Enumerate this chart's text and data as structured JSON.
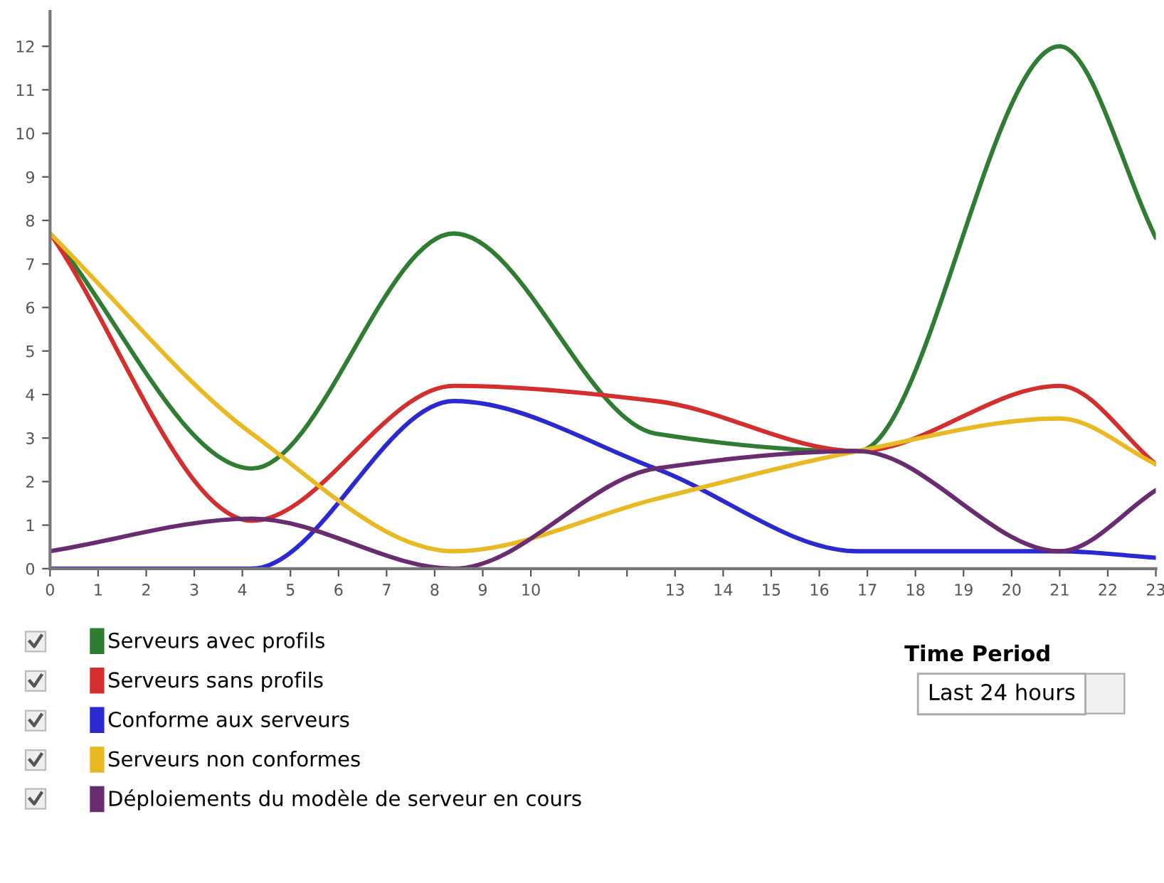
{
  "chart_data": {
    "type": "line",
    "x": [
      0,
      4.2,
      8.4,
      12.6,
      16.8,
      21,
      23
    ],
    "series": [
      {
        "name": "Serveurs avec profils",
        "color": "#2e7d32",
        "values": [
          7.7,
          2.3,
          7.7,
          3.1,
          2.7,
          12,
          7.6
        ]
      },
      {
        "name": "Serveurs sans profils",
        "color": "#d32f2f",
        "values": [
          7.7,
          1.1,
          4.2,
          3.85,
          2.7,
          4.2,
          2.4
        ]
      },
      {
        "name": "Conforme aux serveurs",
        "color": "#2a2ad0",
        "values": [
          0,
          0,
          3.85,
          2.3,
          0.4,
          0.4,
          0.25
        ]
      },
      {
        "name": "Serveurs non conformes",
        "color": "#e8b923",
        "values": [
          7.7,
          3.1,
          0.4,
          1.6,
          2.7,
          3.45,
          2.4
        ]
      },
      {
        "name": "Déploiements du modèle de serveur en cours",
        "color": "#6a2c70",
        "values": [
          0.4,
          1.15,
          0,
          2.3,
          2.7,
          0.4,
          1.8
        ]
      }
    ],
    "xlim": [
      0,
      23
    ],
    "xticks": [
      0,
      1,
      2,
      3,
      4,
      5,
      6,
      7,
      8,
      9,
      10,
      {
        "value": 11,
        "label": null
      },
      {
        "value": 12,
        "label": null
      },
      13,
      14,
      15,
      16,
      17,
      18,
      19,
      20,
      21,
      22,
      23
    ],
    "ylim": [
      0,
      12.8
    ],
    "yticks": [
      0,
      1,
      2,
      3,
      4,
      5,
      6,
      7,
      8,
      9,
      10,
      11,
      12
    ],
    "grid": false,
    "legend": "bottom left",
    "marker": "none",
    "line_style": "solid",
    "annotations": [
      "Time Period",
      "Last 24 hours"
    ]
  }
}
